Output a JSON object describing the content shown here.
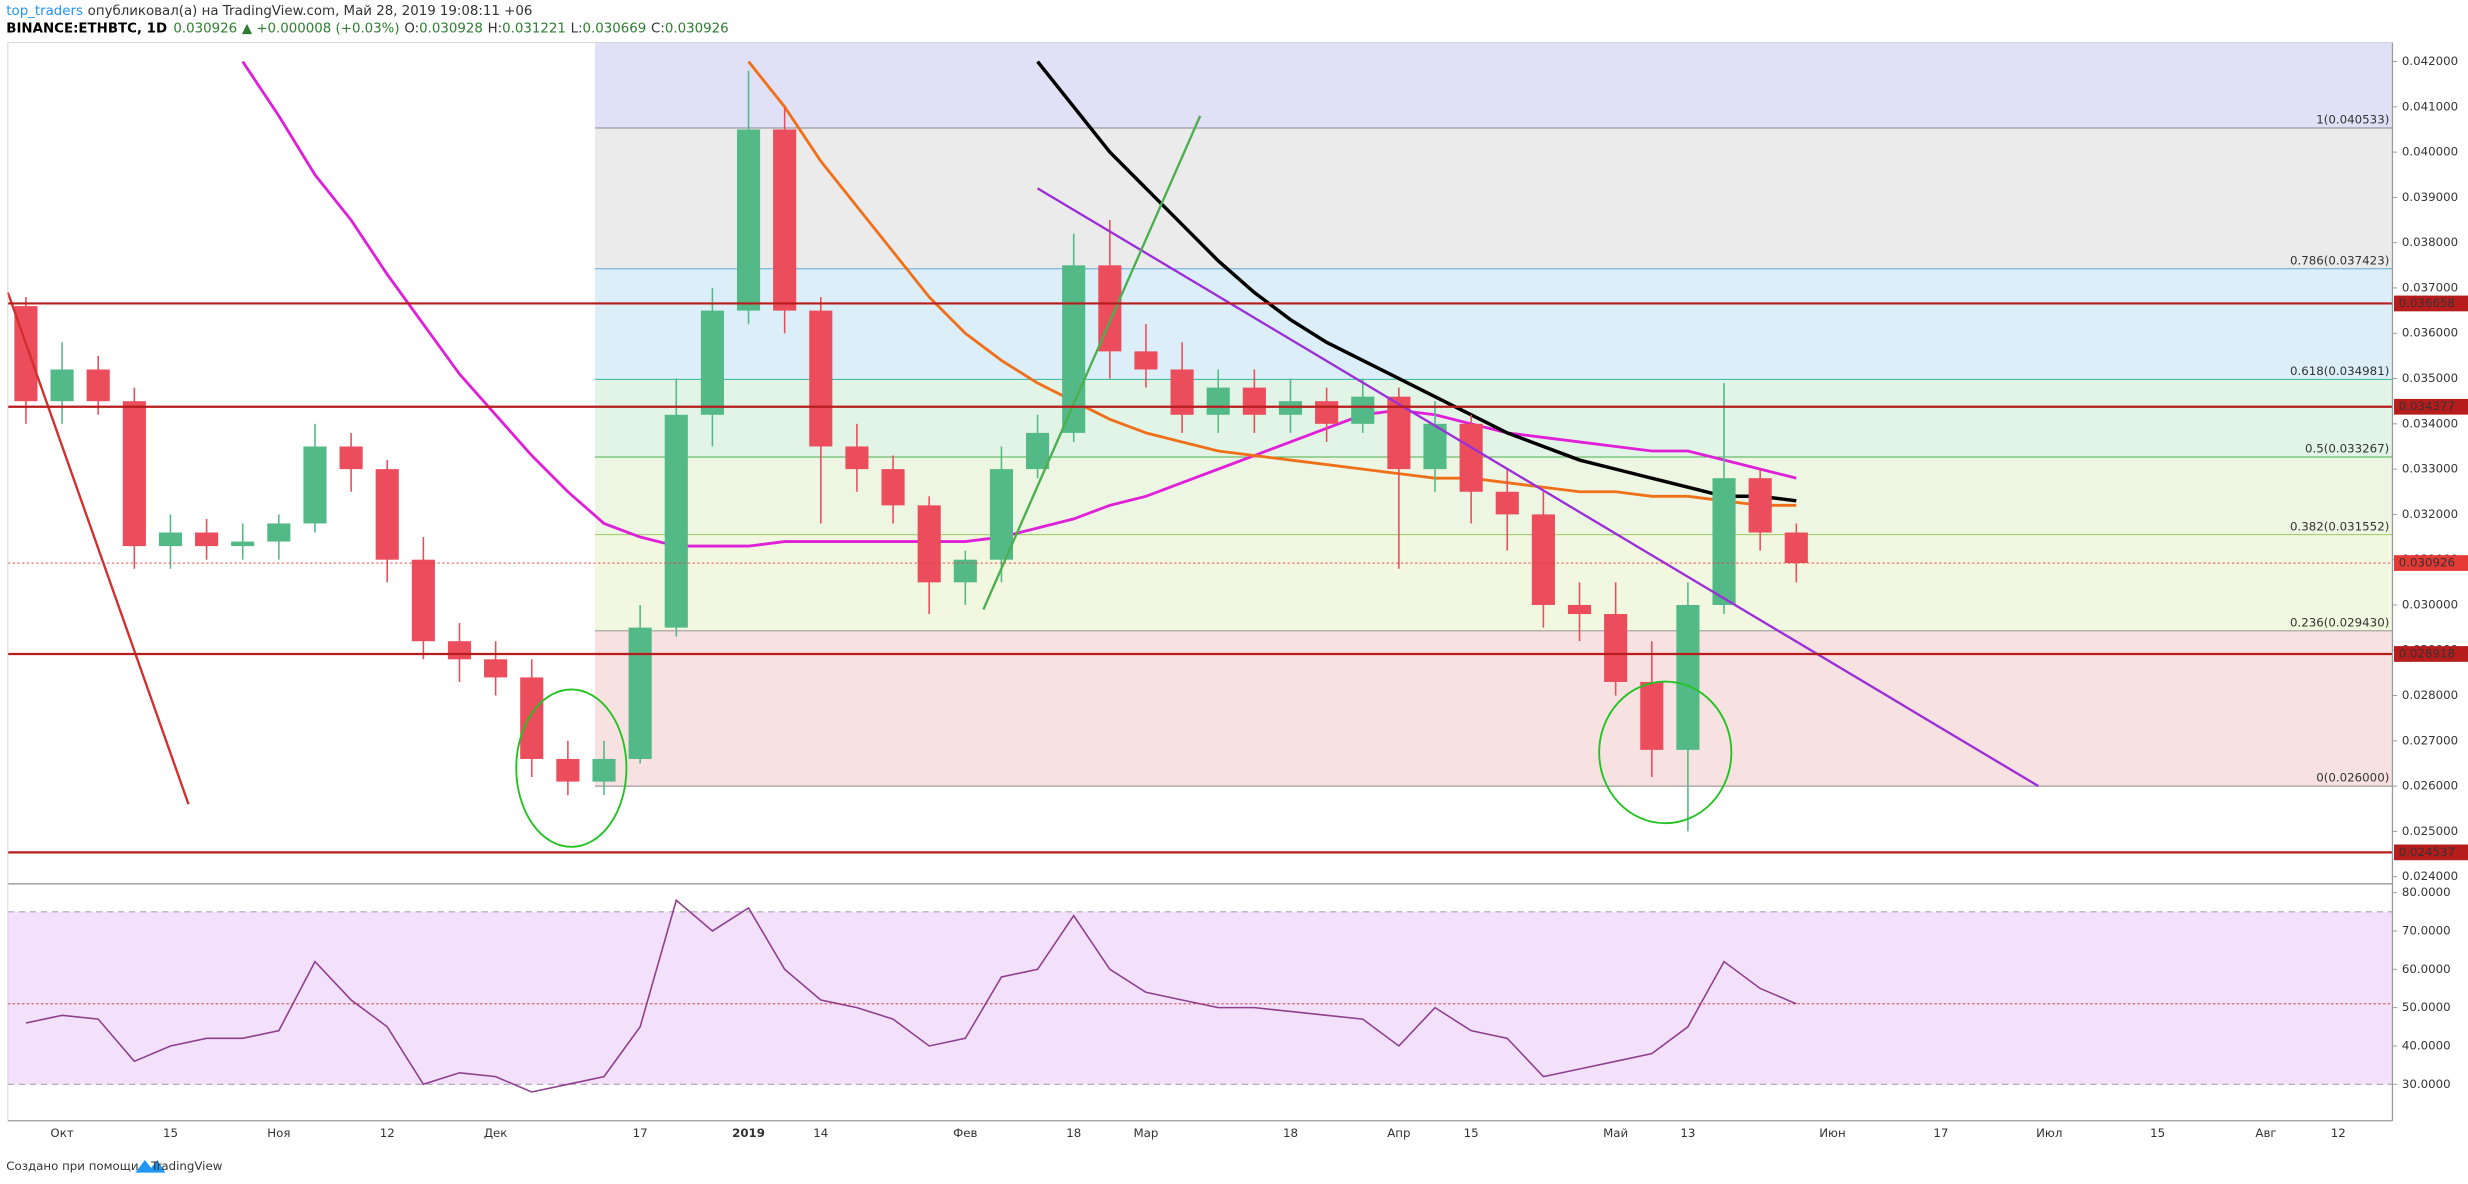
{
  "header": {
    "user": "top_traders",
    "published": "опубликовал(а) на TradingView.com, Май 28, 2019 19:08:11 +06",
    "symbol": "BINANCE:ETHBTC, 1D",
    "last": "0.030926",
    "change": "▲ +0.000008 (+0.03%)",
    "ohlc": [
      [
        "O:",
        "0.030928"
      ],
      [
        "H:",
        "0.031221"
      ],
      [
        "L:",
        "0.030669"
      ],
      [
        "C:",
        "0.030926"
      ]
    ]
  },
  "footer": {
    "text": "Создано при помощи",
    "brand": "TradingView"
  },
  "chart_data": [
    {
      "type": "candlestick",
      "categories": [
        null,
        "Окт",
        null,
        null,
        "15",
        null,
        null,
        "Ноя",
        null,
        null,
        "12",
        null,
        null,
        "Дек",
        null,
        null,
        null,
        "17",
        null,
        null,
        "2019",
        null,
        "14",
        null,
        null,
        null,
        "Фев",
        null,
        null,
        "18",
        null,
        "Мар",
        null,
        null,
        null,
        "18",
        null,
        null,
        "Апр",
        null,
        "15",
        null,
        null,
        null,
        "Май",
        null,
        "13",
        null,
        null,
        null,
        "Июн",
        null,
        null,
        "17",
        null,
        null,
        "Июл",
        null,
        null,
        "15",
        null,
        null,
        "Авг",
        null,
        "12",
        null
      ],
      "open": [
        0.0366,
        0.0345,
        0.0352,
        0.0345,
        0.0313,
        0.0316,
        0.0313,
        0.0314,
        0.0318,
        0.0335,
        0.033,
        0.031,
        0.0292,
        0.0288,
        0.0284,
        0.0266,
        0.0261,
        0.0266,
        0.0295,
        0.0342,
        0.0365,
        0.0405,
        0.0365,
        0.0335,
        0.033,
        0.0322,
        0.0305,
        0.031,
        0.033,
        0.0338,
        0.0375,
        0.0356,
        0.0352,
        0.0342,
        0.0348,
        0.0342,
        0.0345,
        0.034,
        0.0346,
        0.033,
        0.034,
        0.0325,
        0.032,
        0.03,
        0.0298,
        0.0283,
        0.0268,
        0.03,
        0.0328,
        0.0316,
        null,
        null,
        null,
        null,
        null,
        null,
        null,
        null,
        null,
        null,
        null,
        null,
        null,
        null,
        null,
        null
      ],
      "high": [
        0.0368,
        0.0358,
        0.0355,
        0.0348,
        0.032,
        0.0319,
        0.0318,
        0.032,
        0.034,
        0.0338,
        0.0332,
        0.0315,
        0.0296,
        0.0292,
        0.0288,
        0.027,
        0.027,
        0.03,
        0.035,
        0.037,
        0.0418,
        0.041,
        0.0368,
        0.034,
        0.0333,
        0.0324,
        0.0312,
        0.0335,
        0.0342,
        0.0382,
        0.0385,
        0.0362,
        0.0358,
        0.0352,
        0.0352,
        0.035,
        0.0348,
        0.035,
        0.0348,
        0.0345,
        0.0342,
        0.033,
        0.0325,
        0.0305,
        0.0305,
        0.0292,
        0.0305,
        0.0349,
        0.033,
        0.0318,
        null,
        null,
        null,
        null,
        null,
        null,
        null,
        null,
        null,
        null,
        null,
        null,
        null,
        null,
        null,
        null
      ],
      "low": [
        0.034,
        0.034,
        0.0342,
        0.0308,
        0.0308,
        0.031,
        0.031,
        0.031,
        0.0316,
        0.0325,
        0.0305,
        0.0288,
        0.0283,
        0.028,
        0.0262,
        0.0258,
        0.0258,
        0.0265,
        0.0293,
        0.0335,
        0.0362,
        0.036,
        0.0318,
        0.0325,
        0.0318,
        0.0298,
        0.03,
        0.0305,
        0.0328,
        0.0336,
        0.035,
        0.0348,
        0.0338,
        0.0338,
        0.0338,
        0.0338,
        0.0336,
        0.0338,
        0.0308,
        0.0325,
        0.0318,
        0.0312,
        0.0295,
        0.0292,
        0.028,
        0.0262,
        0.025,
        0.0298,
        0.0312,
        0.0305,
        null,
        null,
        null,
        null,
        null,
        null,
        null,
        null,
        null,
        null,
        null,
        null,
        null,
        null,
        null,
        null
      ],
      "close": [
        0.0345,
        0.0352,
        0.0345,
        0.0313,
        0.0316,
        0.0313,
        0.0314,
        0.0318,
        0.0335,
        0.033,
        0.031,
        0.0292,
        0.0288,
        0.0284,
        0.0266,
        0.0261,
        0.0266,
        0.0295,
        0.0342,
        0.0365,
        0.0405,
        0.0365,
        0.0335,
        0.033,
        0.0322,
        0.0305,
        0.031,
        0.033,
        0.0338,
        0.0375,
        0.0356,
        0.0352,
        0.0342,
        0.0348,
        0.0342,
        0.0345,
        0.034,
        0.0346,
        0.033,
        0.034,
        0.0325,
        0.032,
        0.03,
        0.0298,
        0.0283,
        0.0268,
        0.03,
        0.0328,
        0.0316,
        0.030926,
        null,
        null,
        null,
        null,
        null,
        null,
        null,
        null,
        null,
        null,
        null,
        null,
        null,
        null,
        null,
        null
      ],
      "up_color": "#53b987",
      "down_color": "#eb4d5c",
      "series": [
        {
          "color": "#e020d8",
          "values": [
            null,
            null,
            null,
            null,
            null,
            null,
            0.042,
            0.0408,
            0.0395,
            0.0385,
            0.0373,
            0.0362,
            0.0351,
            0.0342,
            0.0333,
            0.0325,
            0.0318,
            0.0315,
            0.0313,
            0.0313,
            0.0313,
            0.0314,
            0.0314,
            0.0314,
            0.0314,
            0.0314,
            0.0314,
            0.0315,
            0.0317,
            0.0319,
            0.0322,
            0.0324,
            0.0327,
            0.033,
            0.0333,
            0.0336,
            0.0339,
            0.0342,
            0.0343,
            0.0342,
            0.034,
            0.0338,
            0.0337,
            0.0336,
            0.0335,
            0.0334,
            0.0334,
            0.0332,
            0.033,
            0.0328,
            null,
            null,
            null,
            null,
            null,
            null,
            null,
            null,
            null,
            null,
            null,
            null,
            null,
            null,
            null,
            null
          ]
        },
        {
          "color": "#f0701a",
          "values": [
            null,
            null,
            null,
            null,
            null,
            null,
            null,
            null,
            null,
            null,
            null,
            null,
            null,
            null,
            null,
            null,
            null,
            null,
            null,
            null,
            0.042,
            0.041,
            0.0398,
            0.0388,
            0.0378,
            0.0368,
            0.036,
            0.0354,
            0.0349,
            0.0345,
            0.0341,
            0.0338,
            0.0336,
            0.0334,
            0.0333,
            0.0332,
            0.0331,
            0.033,
            0.0329,
            0.0328,
            0.0328,
            0.0327,
            0.0326,
            0.0325,
            0.0325,
            0.0324,
            0.0324,
            0.0323,
            0.0322,
            0.0322,
            null,
            null,
            null,
            null,
            null,
            null,
            null,
            null,
            null,
            null,
            null,
            null,
            null,
            null,
            null,
            null
          ]
        },
        {
          "color": "#000000",
          "values": [
            null,
            null,
            null,
            null,
            null,
            null,
            null,
            null,
            null,
            null,
            null,
            null,
            null,
            null,
            null,
            null,
            null,
            null,
            null,
            null,
            null,
            null,
            null,
            null,
            null,
            null,
            null,
            null,
            0.042,
            0.041,
            0.04,
            0.0392,
            0.0384,
            0.0376,
            0.0369,
            0.0363,
            0.0358,
            0.0354,
            0.035,
            0.0346,
            0.0342,
            0.0338,
            0.0335,
            0.0332,
            0.033,
            0.0328,
            0.0326,
            0.0324,
            0.0324,
            0.0323,
            null,
            null,
            null,
            null,
            null,
            null,
            null,
            null,
            null,
            null,
            null,
            null,
            null,
            null,
            null,
            null
          ]
        }
      ],
      "trendlines": [
        {
          "color": "#9b30d9",
          "x": [
            28.0,
            55.7
          ],
          "y": [
            0.0392,
            0.026
          ]
        },
        {
          "color": "#4caf50",
          "x": [
            26.5,
            32.5
          ],
          "y": [
            0.0299,
            0.0408
          ]
        },
        {
          "color": "#d32f2f",
          "x": [
            -0.5,
            4.5
          ],
          "y": [
            0.0369,
            0.0256
          ]
        }
      ],
      "fib_levels": [
        {
          "value": 0.040533,
          "label": "1(0.040533)"
        },
        {
          "value": 0.037423,
          "label": "0.786(0.037423)"
        },
        {
          "value": 0.034981,
          "label": "0.618(0.034981)"
        },
        {
          "value": 0.033267,
          "label": "0.5(0.033267)"
        },
        {
          "value": 0.031552,
          "label": "0.382(0.031552)"
        },
        {
          "value": 0.02943,
          "label": "0.236(0.029430)"
        },
        {
          "value": 0.026,
          "label": "0(0.026000)"
        }
      ],
      "fib_colors": [
        "#e0e0f7",
        "#ebebeb",
        "#dceff9",
        "#e2f4e6",
        "#ecf6e2",
        "#f2f7e0",
        "#f8e1e1"
      ],
      "fib_line_colors": [
        "#888888",
        "#4aa0d0",
        "#33b3a0",
        "#4caf50",
        "#8bc34a",
        "#888888",
        "#888888"
      ],
      "levels": [
        0.036658,
        0.034377,
        0.028918,
        0.024537
      ],
      "level_color": "#b71c1c",
      "last_price": 0.030926,
      "ylim": [
        0.02386,
        0.04242
      ],
      "yticks": [
        {
          "value": 0.024,
          "label": "0.024000"
        },
        {
          "value": 0.025,
          "label": "0.025000"
        },
        {
          "value": 0.026,
          "label": "0.026000"
        },
        {
          "value": 0.027,
          "label": "0.027000"
        },
        {
          "value": 0.028,
          "label": "0.028000"
        },
        {
          "value": 0.029,
          "label": "0.029000"
        },
        {
          "value": 0.03,
          "label": "0.030000"
        },
        {
          "value": 0.031,
          "label": "0.031000"
        },
        {
          "value": 0.032,
          "label": "0.032000"
        },
        {
          "value": 0.033,
          "label": "0.033000"
        },
        {
          "value": 0.034,
          "label": "0.034000"
        },
        {
          "value": 0.035,
          "label": "0.035000"
        },
        {
          "value": 0.036,
          "label": "0.036000"
        },
        {
          "value": 0.037,
          "label": "0.037000"
        },
        {
          "value": 0.038,
          "label": "0.038000"
        },
        {
          "value": 0.039,
          "label": "0.039000"
        },
        {
          "value": 0.04,
          "label": "0.040000"
        },
        {
          "value": 0.041,
          "label": "0.041000"
        },
        {
          "value": 0.042,
          "label": "0.042000"
        }
      ]
    },
    {
      "type": "line",
      "color": "#8e3f8e",
      "values": [
        46,
        48,
        47,
        36,
        40,
        42,
        42,
        44,
        62,
        52,
        45,
        30,
        33,
        32,
        28,
        30,
        32,
        45,
        78,
        70,
        76,
        60,
        52,
        50,
        47,
        40,
        42,
        58,
        60,
        74,
        60,
        54,
        52,
        50,
        50,
        49,
        48,
        47,
        40,
        50,
        44,
        42,
        32,
        34,
        36,
        38,
        45,
        62,
        55,
        51,
        null,
        null,
        null,
        null,
        null,
        null,
        null,
        null,
        null,
        null,
        null,
        null,
        null,
        null,
        null,
        null
      ],
      "band": [
        30,
        75
      ],
      "band_color": "#f3e0fb",
      "ylim": [
        20.5,
        82.1
      ],
      "yticks": [
        {
          "value": 30,
          "label": "30.0000"
        },
        {
          "value": 40,
          "label": "40.0000"
        },
        {
          "value": 50,
          "label": "50.0000"
        },
        {
          "value": 60,
          "label": "60.0000"
        },
        {
          "value": 70,
          "label": "70.0000"
        },
        {
          "value": 80,
          "label": "80.0000"
        }
      ]
    }
  ]
}
